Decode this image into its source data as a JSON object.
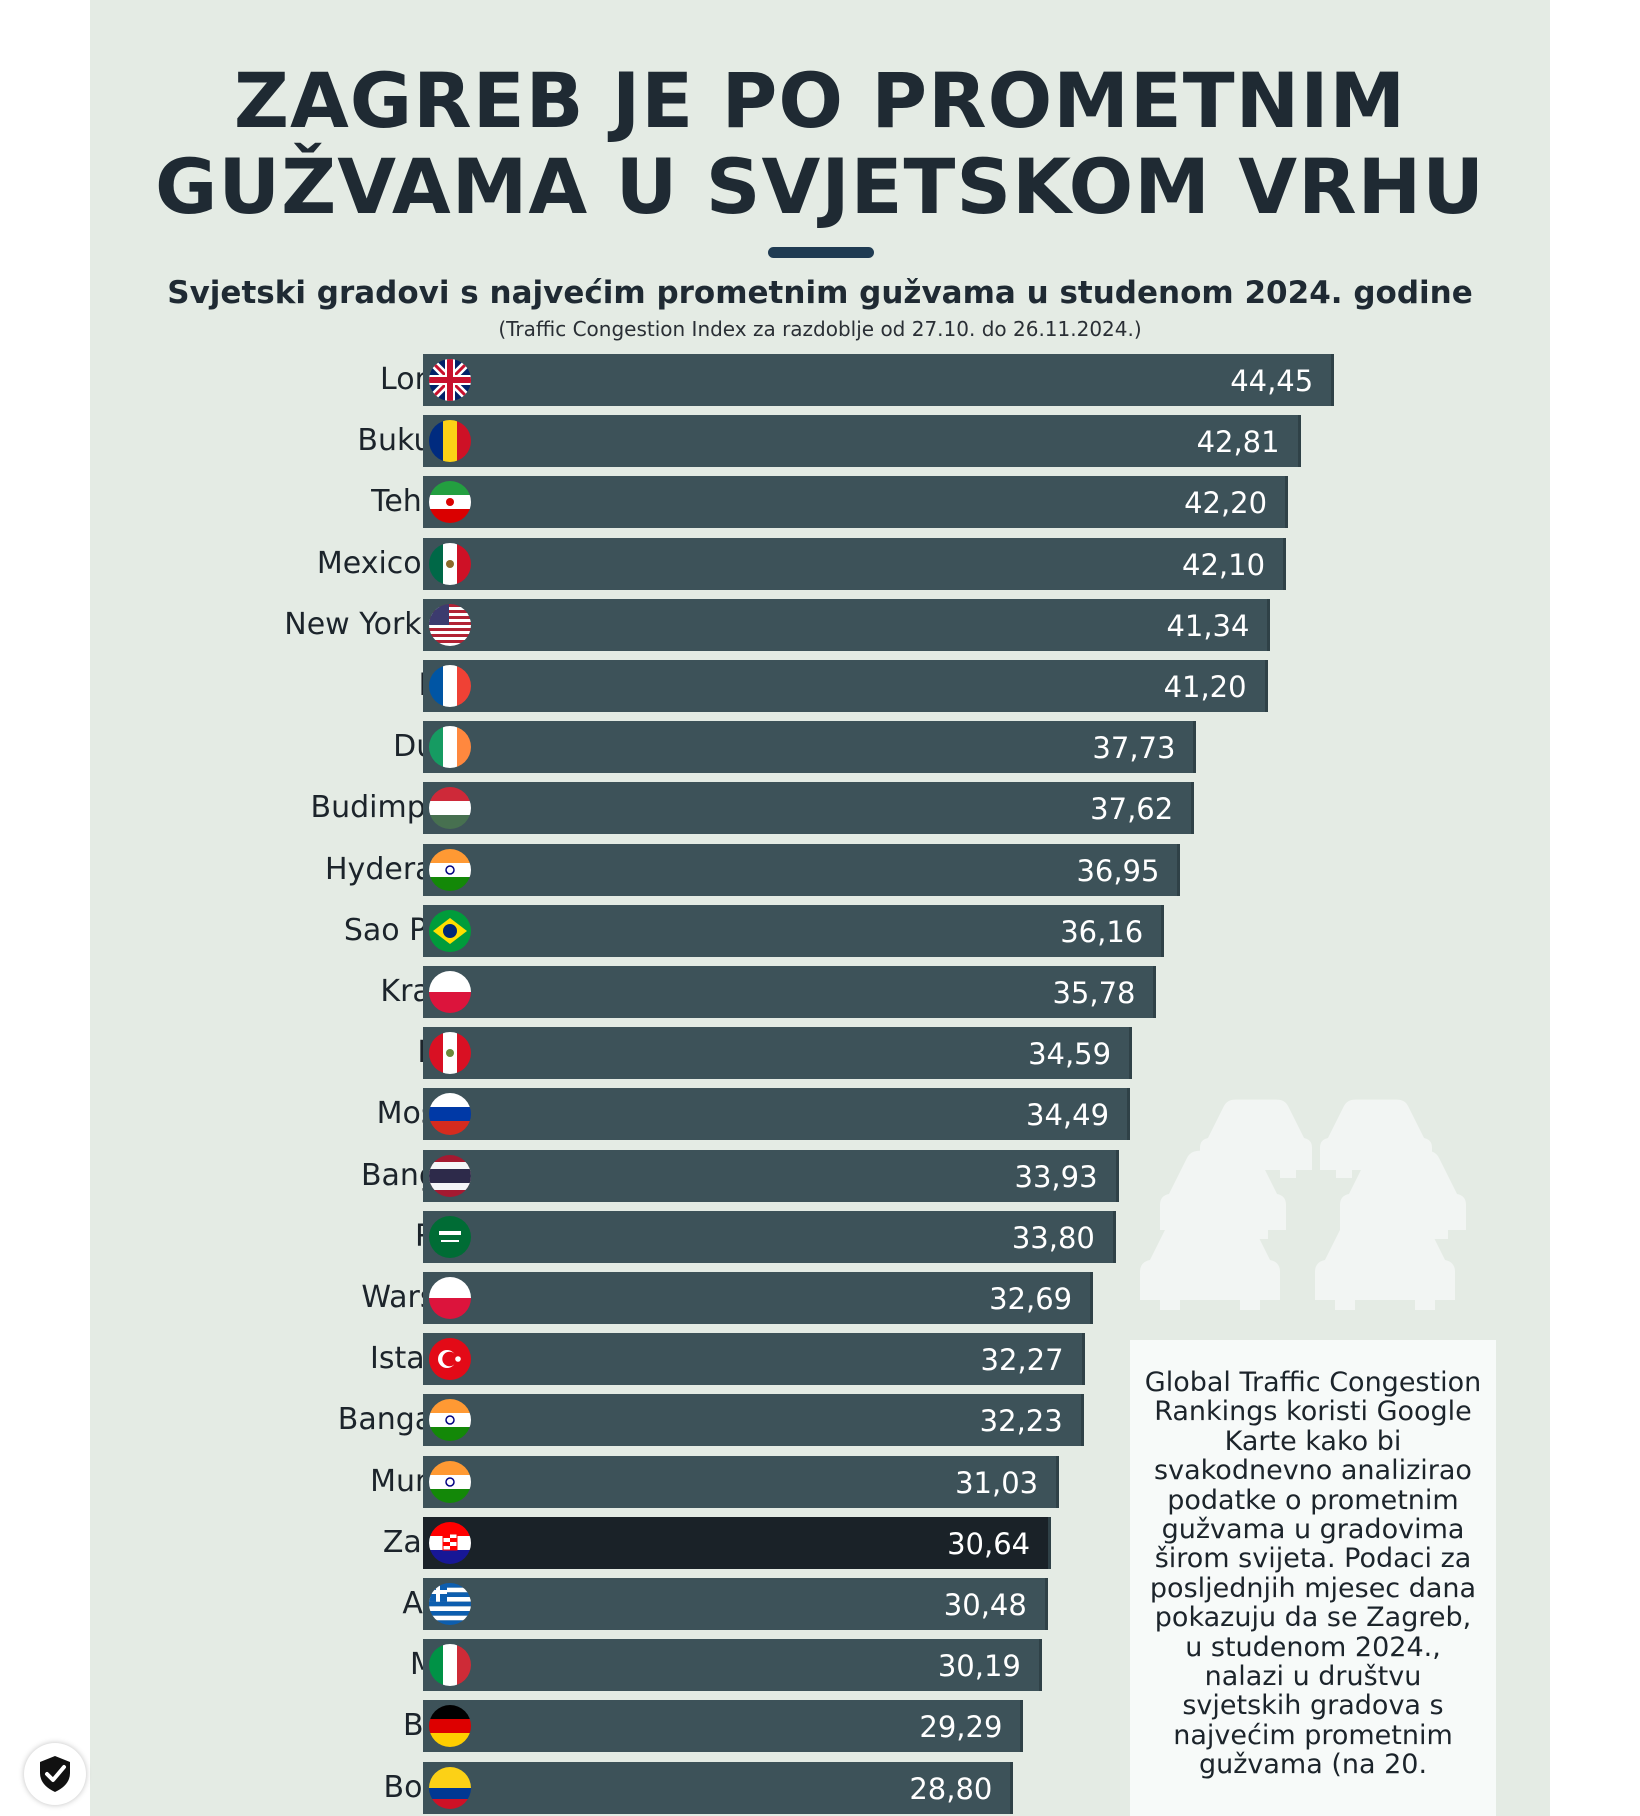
{
  "title_line1": "ZAGREB JE PO PROMETNIM",
  "title_line2": "GUŽVAMA U SVJETSKOM VRHU",
  "subtitle": "Svjetski gradovi s najvećim prometnim gužvama u studenom 2024. godine",
  "note": "(Traffic Congestion Index za razdoblje od 27.10. do 26.11.2024.)",
  "info_text": "Global Traffic Congestion Rankings koristi Google Karte kako bi svakodnevno analizirao podatke o prometnim gužvama u gradovima širom svijeta. Podaci za posljednjih mjesec dana pokazuju da se Zagreb, u studenom 2024., nalazi u društvu svjetskih gradova s najvećim prometnim gužvama (na 20.",
  "colors": {
    "bar": "#3d5259",
    "highlight": "#1a2228",
    "background": "#e4ebe4",
    "title": "#1f2a33"
  },
  "icons": {
    "badge": "shield-check-icon",
    "decoration": "car-icon"
  },
  "chart_data": {
    "type": "bar",
    "orientation": "horizontal",
    "title": "ZAGREB JE PO PROMETNIM GUŽVAMA U SVJETSKOM VRHU",
    "subtitle": "Svjetski gradovi s najvećim prometnim gužvama u studenom 2024. godine",
    "note": "(Traffic Congestion Index za razdoblje od 27.10. do 26.11.2024.)",
    "xlim": [
      0,
      50
    ],
    "highlight": "Zagreb",
    "categories": [
      "London",
      "Bukurešt",
      "Teheran",
      "Mexico City",
      "New York City",
      "Pariz",
      "Dublin",
      "Budimpešta",
      "Hyderabad",
      "Sao Paulo",
      "Krakow",
      "Lima",
      "Moskva",
      "Bangkok",
      "Rijad",
      "Waršava",
      "Istanbul",
      "Bangalore",
      "Mumbai",
      "Zagreb",
      "Atena",
      "Milan",
      "Berlin",
      "Bogota"
    ],
    "values": [
      44.45,
      42.81,
      42.2,
      42.1,
      41.34,
      41.2,
      37.73,
      37.62,
      36.95,
      36.16,
      35.78,
      34.59,
      34.49,
      33.93,
      33.8,
      32.69,
      32.27,
      32.23,
      31.03,
      30.64,
      30.48,
      30.19,
      29.29,
      28.8
    ],
    "value_labels": [
      "44,45",
      "42,81",
      "42,20",
      "42,10",
      "41,34",
      "41,20",
      "37,73",
      "37,62",
      "36,95",
      "36,16",
      "35,78",
      "34,59",
      "34,49",
      "33,93",
      "33,80",
      "32,69",
      "32,27",
      "32,23",
      "31,03",
      "30,64",
      "30,48",
      "30,19",
      "29,29",
      "28,80"
    ],
    "flags": [
      "uk",
      "romania",
      "iran",
      "mexico",
      "usa",
      "france",
      "ireland",
      "hungary",
      "india",
      "brazil",
      "poland",
      "peru",
      "russia",
      "thailand",
      "saudi",
      "poland",
      "turkey",
      "india",
      "india",
      "croatia",
      "greece",
      "italy",
      "germany",
      "colombia"
    ]
  }
}
